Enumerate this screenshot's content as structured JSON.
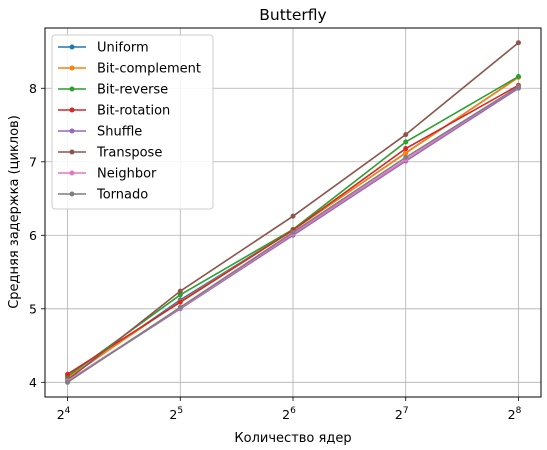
{
  "chart_data": {
    "type": "line",
    "title": "Butterfly",
    "xlabel": "Количество ядер",
    "ylabel": "Средняя задержка (циклов)",
    "x": [
      4,
      5,
      6,
      7,
      8
    ],
    "x_tick_labels": [
      {
        "base": "2",
        "exp": "4"
      },
      {
        "base": "2",
        "exp": "5"
      },
      {
        "base": "2",
        "exp": "6"
      },
      {
        "base": "2",
        "exp": "7"
      },
      {
        "base": "2",
        "exp": "8"
      }
    ],
    "y_ticks": [
      4,
      5,
      6,
      7,
      8
    ],
    "xlim": [
      3.8,
      8.2
    ],
    "ylim": [
      3.8,
      8.82
    ],
    "grid": true,
    "legend_position": "top-left",
    "series": [
      {
        "name": "Uniform",
        "color": "#1f77b4",
        "values": [
          4.05,
          5.12,
          6.07,
          7.12,
          8.15
        ]
      },
      {
        "name": "Bit-complement",
        "color": "#ff7f0e",
        "values": [
          4.06,
          5.1,
          6.07,
          7.12,
          8.15
        ]
      },
      {
        "name": "Bit-reverse",
        "color": "#2ca02c",
        "values": [
          4.08,
          5.19,
          6.08,
          7.27,
          8.16
        ]
      },
      {
        "name": "Bit-rotation",
        "color": "#d62728",
        "values": [
          4.11,
          5.09,
          6.07,
          7.18,
          8.04
        ]
      },
      {
        "name": "Shuffle",
        "color": "#9467bd",
        "values": [
          4.01,
          5.0,
          6.0,
          7.01,
          8.0
        ]
      },
      {
        "name": "Transpose",
        "color": "#8c564b",
        "values": [
          4.03,
          5.24,
          6.26,
          7.37,
          8.62
        ]
      },
      {
        "name": "Neighbor",
        "color": "#e377c2",
        "values": [
          4.02,
          5.01,
          6.02,
          7.03,
          8.02
        ]
      },
      {
        "name": "Tornado",
        "color": "#7f7f7f",
        "values": [
          4.0,
          5.02,
          6.04,
          7.06,
          8.02
        ]
      }
    ]
  }
}
